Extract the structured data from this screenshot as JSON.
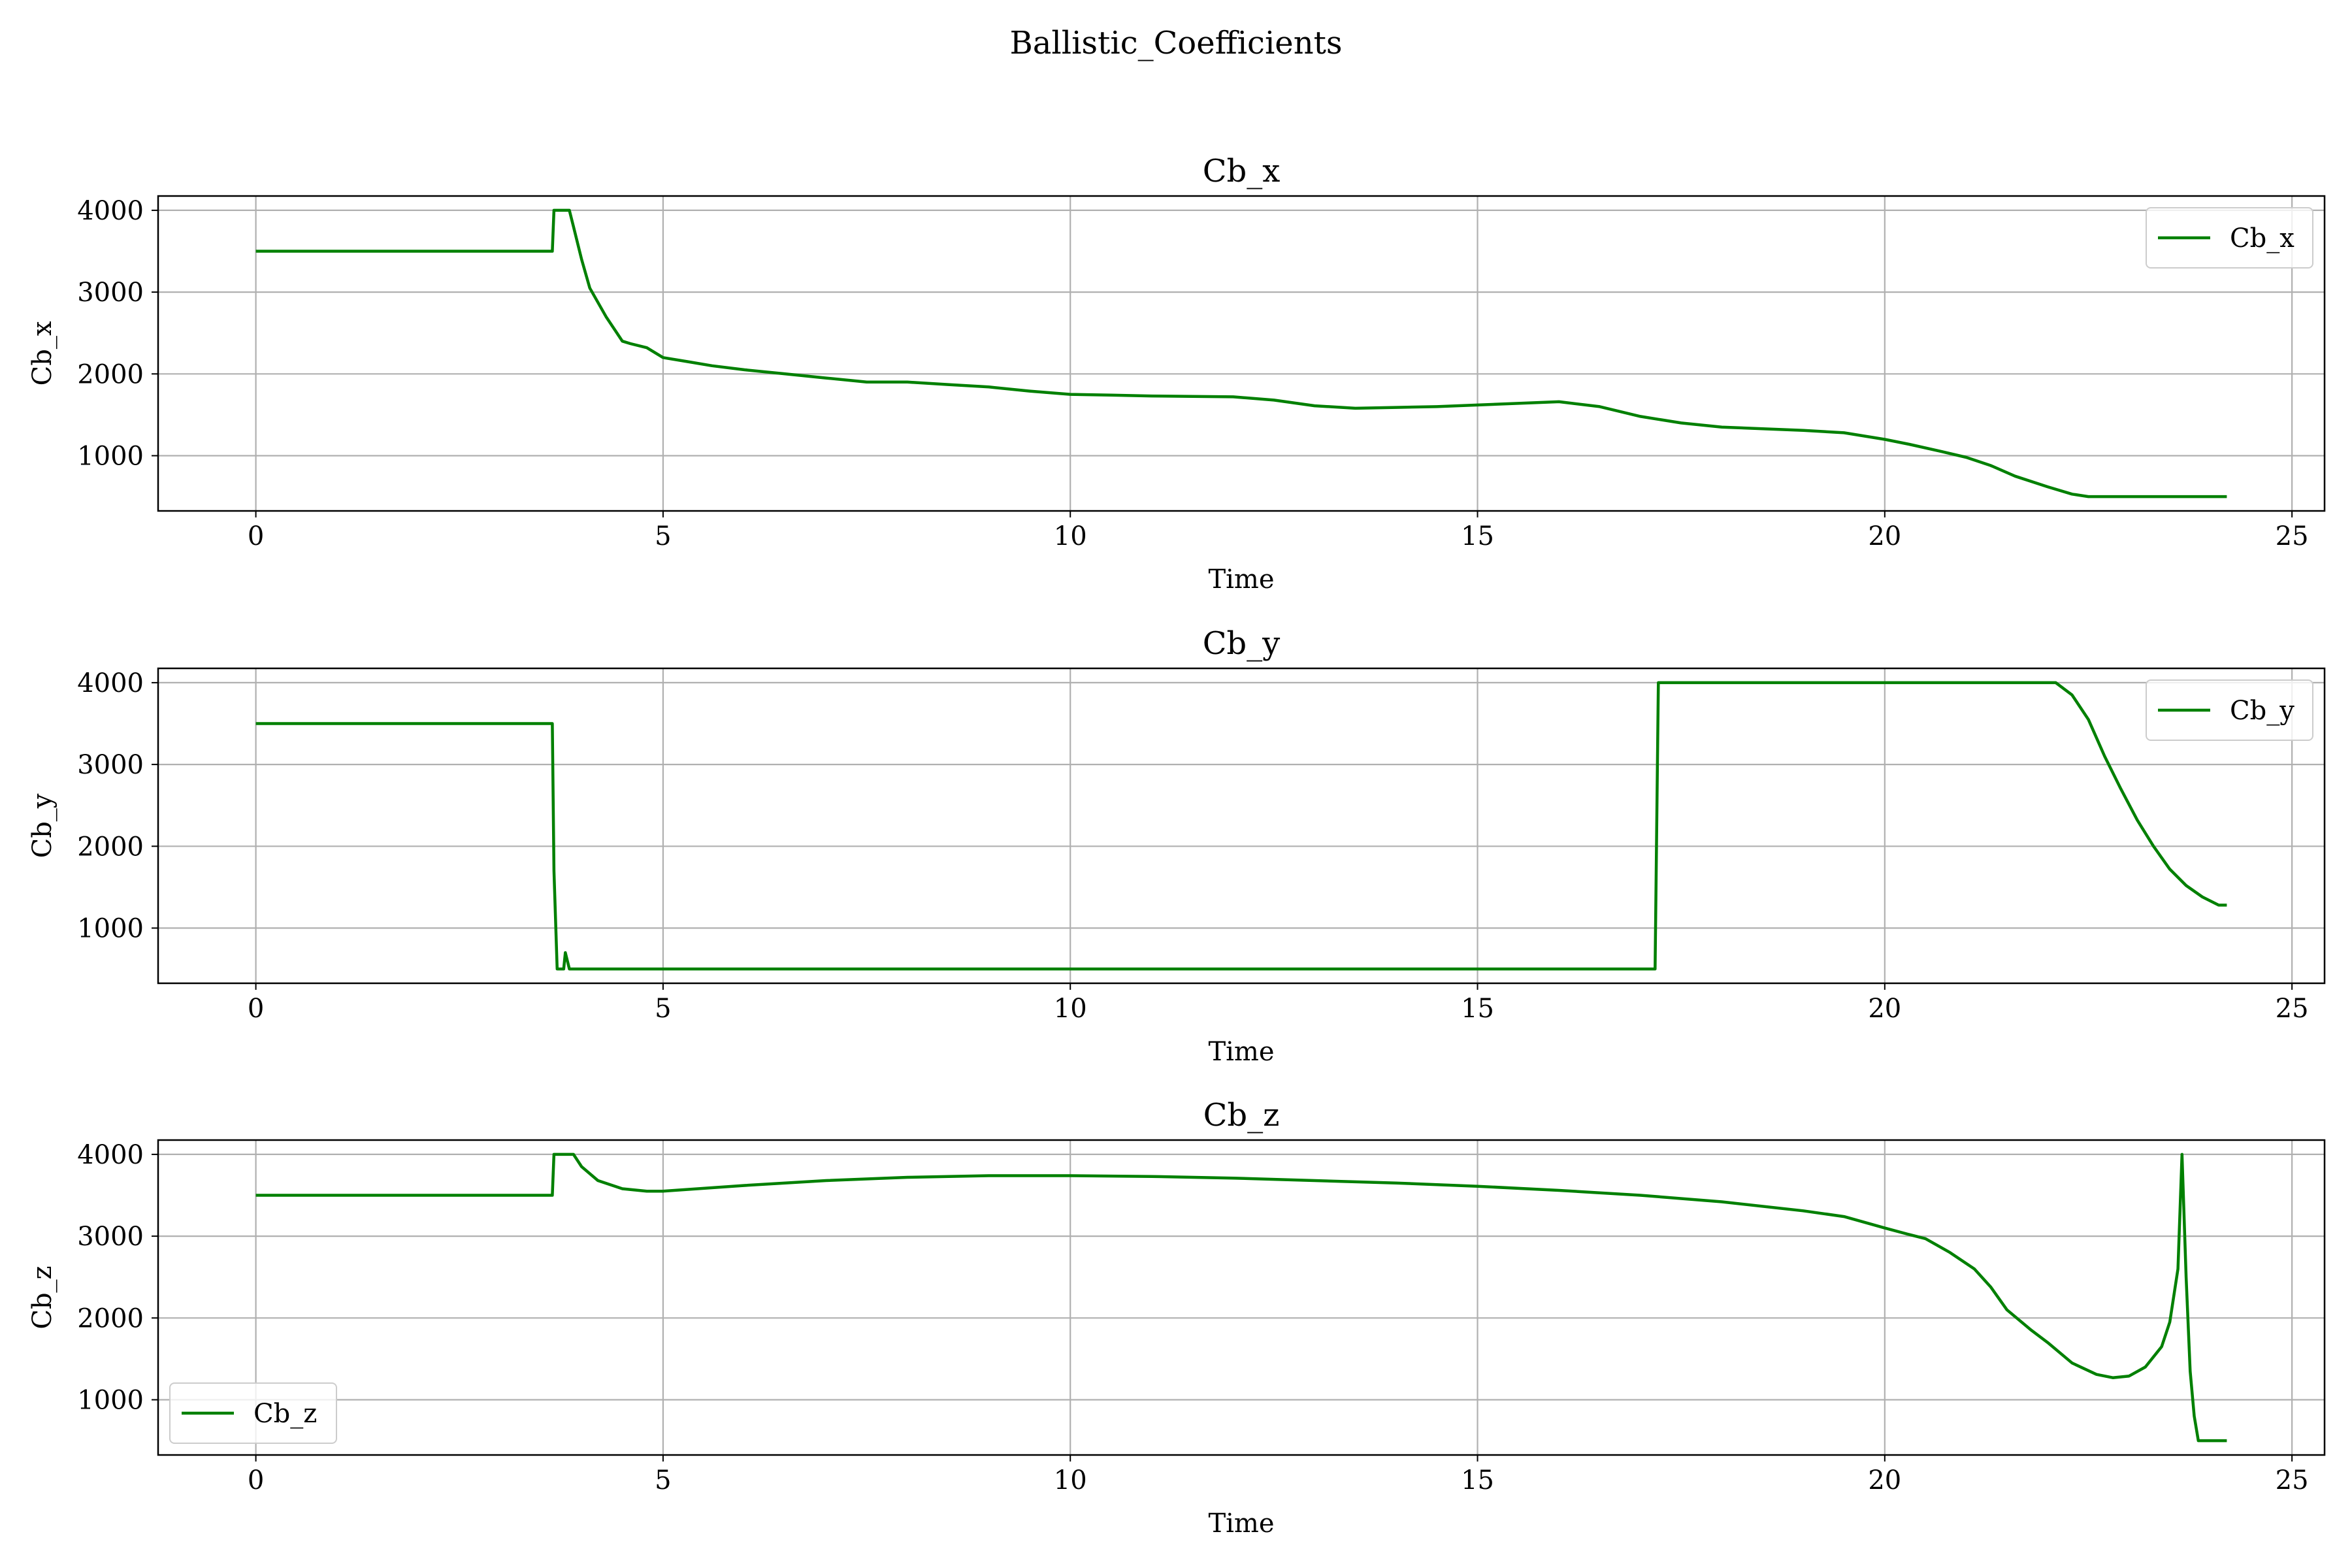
{
  "figure": {
    "suptitle": "Ballistic_Coefficients"
  },
  "style": {
    "line_color": "#008000",
    "grid_color": "#b0b0b0",
    "axes_color": "#000000",
    "legend_border": "#cccccc"
  },
  "chart_data": [
    {
      "type": "line",
      "title": "Cb_x",
      "xlabel": "Time",
      "ylabel": "Cb_x",
      "xlim": [
        -1.2,
        25.4
      ],
      "ylim": [
        325,
        4175
      ],
      "xticks": [
        0,
        5,
        10,
        15,
        20,
        25
      ],
      "yticks": [
        1000,
        2000,
        3000,
        4000
      ],
      "grid": true,
      "legend_position": "upper right",
      "series": [
        {
          "name": "Cb_x",
          "x": [
            0,
            3.64,
            3.66,
            3.85,
            3.9,
            4.0,
            4.1,
            4.3,
            4.5,
            4.6,
            4.8,
            5.0,
            5.3,
            5.6,
            6.0,
            6.5,
            7.0,
            7.5,
            8.0,
            8.5,
            9.0,
            9.5,
            10.0,
            10.5,
            11.0,
            11.5,
            12.0,
            12.5,
            13.0,
            13.5,
            14.0,
            14.5,
            15.0,
            15.5,
            16.0,
            16.5,
            17.0,
            17.5,
            18.0,
            18.5,
            19.0,
            19.5,
            20.0,
            20.3,
            20.7,
            21.0,
            21.3,
            21.6,
            22.0,
            22.3,
            22.5,
            23.0,
            23.5,
            24.0,
            24.2
          ],
          "y": [
            3500,
            3500,
            4000,
            4000,
            3800,
            3400,
            3050,
            2700,
            2400,
            2370,
            2320,
            2200,
            2150,
            2100,
            2050,
            2000,
            1950,
            1900,
            1900,
            1870,
            1840,
            1790,
            1750,
            1740,
            1730,
            1725,
            1720,
            1680,
            1610,
            1580,
            1590,
            1600,
            1620,
            1640,
            1660,
            1600,
            1480,
            1400,
            1350,
            1330,
            1310,
            1280,
            1200,
            1140,
            1050,
            980,
            880,
            750,
            620,
            530,
            500,
            500,
            500,
            500,
            500
          ]
        }
      ]
    },
    {
      "type": "line",
      "title": "Cb_y",
      "xlabel": "Time",
      "ylabel": "Cb_y",
      "xlim": [
        -1.2,
        25.4
      ],
      "ylim": [
        325,
        4175
      ],
      "xticks": [
        0,
        5,
        10,
        15,
        20,
        25
      ],
      "yticks": [
        1000,
        2000,
        3000,
        4000
      ],
      "grid": true,
      "legend_position": "upper right",
      "series": [
        {
          "name": "Cb_y",
          "x": [
            0,
            3.64,
            3.66,
            3.7,
            3.78,
            3.8,
            3.85,
            3.9,
            3.95,
            17.18,
            17.22,
            22.1,
            22.3,
            22.5,
            22.7,
            22.9,
            23.1,
            23.3,
            23.5,
            23.7,
            23.9,
            24.1,
            24.2
          ],
          "y": [
            3500,
            3500,
            1700,
            500,
            500,
            700,
            500,
            500,
            500,
            500,
            4000,
            4000,
            3850,
            3550,
            3100,
            2700,
            2320,
            2000,
            1720,
            1520,
            1380,
            1280,
            1280
          ]
        }
      ]
    },
    {
      "type": "line",
      "title": "Cb_z",
      "xlabel": "Time",
      "ylabel": "Cb_z",
      "xlim": [
        -1.2,
        25.4
      ],
      "ylim": [
        325,
        4175
      ],
      "xticks": [
        0,
        5,
        10,
        15,
        20,
        25
      ],
      "yticks": [
        1000,
        2000,
        3000,
        4000
      ],
      "grid": true,
      "legend_position": "lower left",
      "series": [
        {
          "name": "Cb_z",
          "x": [
            0,
            3.64,
            3.66,
            3.9,
            4.0,
            4.2,
            4.5,
            4.8,
            5.0,
            6.0,
            7.0,
            8.0,
            9.0,
            10.0,
            11.0,
            12.0,
            13.0,
            14.0,
            15.0,
            16.0,
            17.0,
            18.0,
            19.0,
            19.5,
            20.0,
            20.3,
            20.5,
            20.8,
            21.1,
            21.3,
            21.5,
            21.8,
            22.0,
            22.3,
            22.6,
            22.8,
            23.0,
            23.2,
            23.4,
            23.5,
            23.6,
            23.65,
            23.7,
            23.75,
            23.8,
            23.85,
            23.9,
            24.0,
            24.2
          ],
          "y": [
            3500,
            3500,
            4000,
            4000,
            3850,
            3680,
            3580,
            3550,
            3550,
            3620,
            3680,
            3720,
            3740,
            3740,
            3730,
            3710,
            3680,
            3650,
            3610,
            3560,
            3500,
            3420,
            3310,
            3240,
            3100,
            3020,
            2970,
            2800,
            2600,
            2380,
            2100,
            1850,
            1700,
            1450,
            1310,
            1270,
            1290,
            1400,
            1650,
            1950,
            2600,
            4000,
            2500,
            1350,
            800,
            500,
            500,
            500,
            500
          ]
        }
      ]
    }
  ]
}
